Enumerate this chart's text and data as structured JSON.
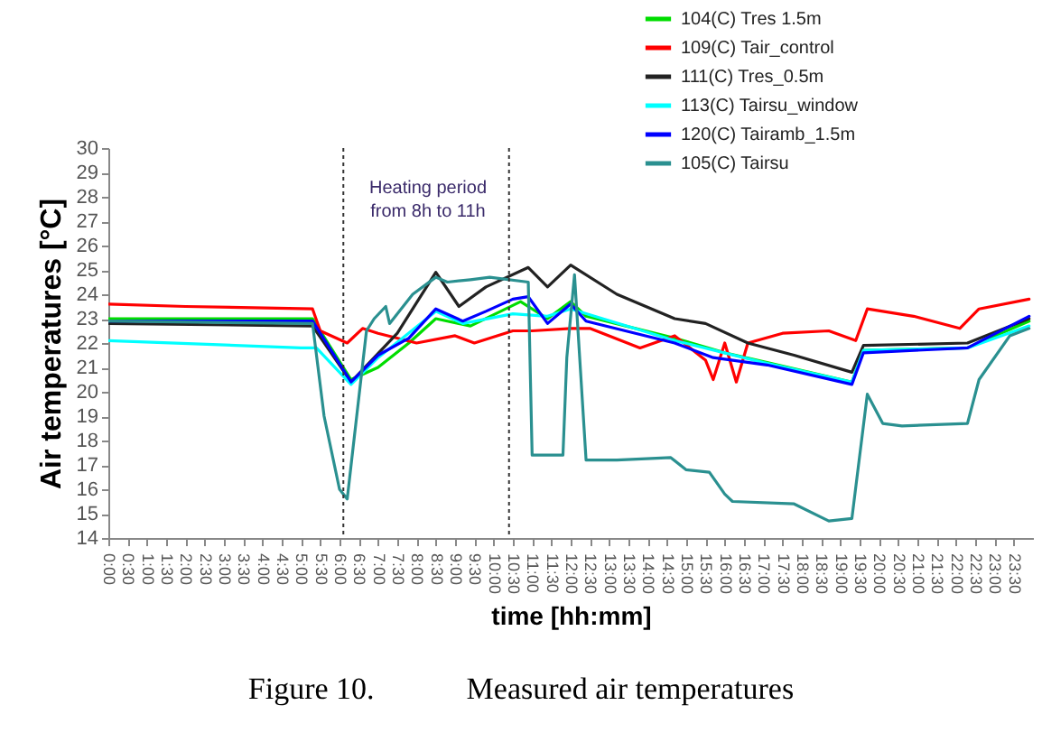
{
  "chart_data": {
    "type": "line",
    "xlabel": "time [hh:mm]",
    "ylabel": "Air  temperatures  [°C]",
    "annotations": [
      "Heating period\nfrom 8h to 11h",
      "Figure 10.            Measured air temperatures"
    ],
    "xlim": [
      0,
      24
    ],
    "xticks": [
      {
        "value": 0,
        "label": "0:00"
      },
      {
        "value": 0.5,
        "label": "0:30"
      },
      {
        "value": 1,
        "label": "1:00"
      },
      {
        "value": 1.5,
        "label": "1:30"
      },
      {
        "value": 2,
        "label": "2:00"
      },
      {
        "value": 2.5,
        "label": "2:30"
      },
      {
        "value": 3,
        "label": "3:00"
      },
      {
        "value": 3.5,
        "label": "3:30"
      },
      {
        "value": 4,
        "label": "4:00"
      },
      {
        "value": 4.5,
        "label": "4:30"
      },
      {
        "value": 5,
        "label": "5:00"
      },
      {
        "value": 5.5,
        "label": "5:30"
      },
      {
        "value": 6,
        "label": "6:00"
      },
      {
        "value": 6.5,
        "label": "6:30"
      },
      {
        "value": 7,
        "label": "7:00"
      },
      {
        "value": 7.5,
        "label": "7:30"
      },
      {
        "value": 8,
        "label": "8:00"
      },
      {
        "value": 8.5,
        "label": "8:30"
      },
      {
        "value": 9,
        "label": "9:00"
      },
      {
        "value": 9.5,
        "label": "9:30"
      },
      {
        "value": 10,
        "label": "10:00"
      },
      {
        "value": 10.5,
        "label": "10:30"
      },
      {
        "value": 11,
        "label": "11:00"
      },
      {
        "value": 11.5,
        "label": "11:30"
      },
      {
        "value": 12,
        "label": "12:00"
      },
      {
        "value": 12.5,
        "label": "12:30"
      },
      {
        "value": 13,
        "label": "13:00"
      },
      {
        "value": 13.5,
        "label": "13:30"
      },
      {
        "value": 14,
        "label": "14:00"
      },
      {
        "value": 14.5,
        "label": "14:30"
      },
      {
        "value": 15,
        "label": "15:00"
      },
      {
        "value": 15.5,
        "label": "15:30"
      },
      {
        "value": 16,
        "label": "16:00"
      },
      {
        "value": 16.5,
        "label": "16:30"
      },
      {
        "value": 17,
        "label": "17:00"
      },
      {
        "value": 17.5,
        "label": "17:30"
      },
      {
        "value": 18,
        "label": "18:00"
      },
      {
        "value": 18.5,
        "label": "18:30"
      },
      {
        "value": 19,
        "label": "19:00"
      },
      {
        "value": 19.5,
        "label": "19:30"
      },
      {
        "value": 20,
        "label": "20:00"
      },
      {
        "value": 20.5,
        "label": "20:30"
      },
      {
        "value": 21,
        "label": "21:00"
      },
      {
        "value": 21.5,
        "label": "21:30"
      },
      {
        "value": 22,
        "label": "22:00"
      },
      {
        "value": 22.5,
        "label": "22:30"
      },
      {
        "value": 23,
        "label": "23:00"
      },
      {
        "value": 23.5,
        "label": "23:30"
      }
    ],
    "ylim": [
      14,
      30
    ],
    "yticks": [
      14,
      15,
      16,
      17,
      18,
      19,
      20,
      21,
      22,
      23,
      24,
      25,
      26,
      27,
      28,
      29,
      30
    ],
    "grid": false,
    "legend": "top right",
    "line_style": "solid",
    "ref_lines": [
      {
        "axis": "x",
        "value": 6.1,
        "line_style": "dotted",
        "color": "#333333"
      },
      {
        "axis": "x",
        "value": 10.4,
        "line_style": "dotted",
        "color": "#333333"
      }
    ],
    "series": [
      {
        "name": "104(C)  Tres  1.5m",
        "color": "#00dd00",
        "x": [
          0,
          5.3,
          6.3,
          7.0,
          7.8,
          8.5,
          9.4,
          10.7,
          11.4,
          12.0,
          12.4,
          14.7,
          16.0,
          17.1,
          19.3,
          19.6,
          22.3,
          23.9
        ],
        "values": [
          23.0,
          23.0,
          20.5,
          21.0,
          22.0,
          23.0,
          22.7,
          23.7,
          23.0,
          23.7,
          23.1,
          22.2,
          21.6,
          21.2,
          20.4,
          21.7,
          21.8,
          22.9
        ]
      },
      {
        "name": "109(C)  Tair_control",
        "color": "#ff0000",
        "x": [
          0,
          2,
          5.3,
          5.5,
          6.2,
          6.6,
          7.0,
          8.0,
          9.0,
          9.5,
          10.5,
          11.0,
          12.0,
          12.5,
          13.8,
          14.7,
          15.5,
          15.7,
          16.0,
          16.3,
          16.6,
          17.5,
          18.7,
          19.4,
          19.7,
          20.9,
          22.1,
          22.6,
          23.9
        ],
        "values": [
          23.6,
          23.5,
          23.4,
          22.5,
          22.0,
          22.6,
          22.4,
          22.0,
          22.3,
          22.0,
          22.5,
          22.5,
          22.6,
          22.6,
          21.8,
          22.3,
          21.3,
          20.5,
          22.0,
          20.4,
          22.0,
          22.4,
          22.5,
          22.1,
          23.4,
          23.1,
          22.6,
          23.4,
          23.8
        ]
      },
      {
        "name": "111(C)  Tres_0.5m",
        "color": "#222222",
        "x": [
          0,
          5.3,
          6.3,
          7.5,
          8.5,
          9.1,
          9.8,
          10.9,
          11.4,
          12.0,
          13.2,
          14.7,
          15.5,
          16.6,
          17.8,
          19.3,
          19.6,
          22.3,
          23.9
        ],
        "values": [
          22.8,
          22.7,
          20.4,
          22.4,
          24.9,
          23.5,
          24.3,
          25.1,
          24.3,
          25.2,
          24.0,
          23.0,
          22.8,
          22.0,
          21.5,
          20.8,
          21.9,
          22.0,
          23.0
        ]
      },
      {
        "name": "113(C)  Tairsu_window",
        "color": "#00ffff",
        "x": [
          0,
          5.0,
          5.4,
          6.3,
          7.0,
          8.5,
          9.2,
          10.5,
          11.4,
          12.0,
          14.7,
          17.0,
          19.3,
          19.6,
          22.3,
          23.9
        ],
        "values": [
          22.1,
          21.8,
          21.8,
          20.3,
          21.4,
          23.3,
          22.8,
          23.2,
          23.1,
          23.4,
          22.1,
          21.2,
          20.4,
          21.7,
          21.8,
          22.7
        ]
      },
      {
        "name": "120(C)  Tairamb_1.5m",
        "color": "#0000ff",
        "x": [
          0,
          5.3,
          6.3,
          7.0,
          7.8,
          8.5,
          9.2,
          9.8,
          10.5,
          10.9,
          11.4,
          12.0,
          12.4,
          14.7,
          15.7,
          17.1,
          19.3,
          19.6,
          22.3,
          23.9
        ],
        "values": [
          22.9,
          22.9,
          20.4,
          21.5,
          22.2,
          23.4,
          22.9,
          23.3,
          23.8,
          23.9,
          22.8,
          23.6,
          22.9,
          22.0,
          21.4,
          21.1,
          20.3,
          21.6,
          21.8,
          23.1
        ]
      },
      {
        "name": "105(C)  Tairsu",
        "color": "#2a9090",
        "x": [
          0,
          5.3,
          5.6,
          6.0,
          6.2,
          6.7,
          6.9,
          7.2,
          7.3,
          7.9,
          8.5,
          8.8,
          9.4,
          9.9,
          10.9,
          11.0,
          11.8,
          11.9,
          12.1,
          12.4,
          13.2,
          14.6,
          15.0,
          15.6,
          16.0,
          16.2,
          17.8,
          18.7,
          19.3,
          19.7,
          20.1,
          20.6,
          22.3,
          22.6,
          23.4,
          23.9
        ],
        "values": [
          22.9,
          22.8,
          19.0,
          16.0,
          15.6,
          22.5,
          23.0,
          23.5,
          22.8,
          24.0,
          24.7,
          24.5,
          24.6,
          24.7,
          24.5,
          17.4,
          17.4,
          21.4,
          24.8,
          17.2,
          17.2,
          17.3,
          16.8,
          16.7,
          15.8,
          15.5,
          15.4,
          14.7,
          14.8,
          19.9,
          18.7,
          18.6,
          18.7,
          20.5,
          22.3,
          22.6
        ]
      }
    ]
  }
}
